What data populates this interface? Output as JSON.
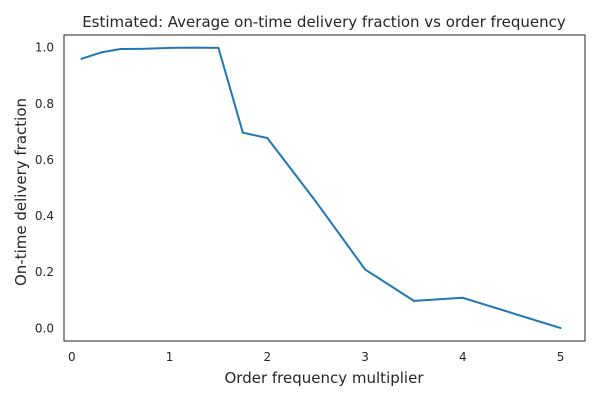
{
  "chart_data": {
    "type": "line",
    "title": "Estimated: Average on-time delivery fraction vs order frequency",
    "xlabel": "Order frequency multiplier",
    "ylabel": "On-time delivery fraction",
    "xlim": [
      -0.08,
      5.25
    ],
    "ylim": [
      -0.045,
      1.045
    ],
    "x_ticks": [
      0,
      1,
      2,
      3,
      4,
      5
    ],
    "y_ticks": [
      0.0,
      0.2,
      0.4,
      0.6,
      0.8,
      1.0
    ],
    "x_tick_labels": [
      "0",
      "1",
      "2",
      "3",
      "4",
      "5"
    ],
    "y_tick_labels": [
      "0.0",
      "0.2",
      "0.4",
      "0.6",
      "0.8",
      "1.0"
    ],
    "grid": false,
    "series": [
      {
        "color": "#1f77b4",
        "x": [
          0.1,
          0.3,
          0.5,
          0.75,
          1.0,
          1.25,
          1.5,
          1.75,
          2.0,
          2.5,
          3.0,
          3.5,
          4.0,
          5.0
        ],
        "y": [
          0.96,
          0.983,
          0.995,
          0.996,
          0.999,
          1.0,
          0.999,
          0.697,
          0.678,
          0.45,
          0.21,
          0.098,
          0.109,
          0.001
        ]
      }
    ]
  }
}
